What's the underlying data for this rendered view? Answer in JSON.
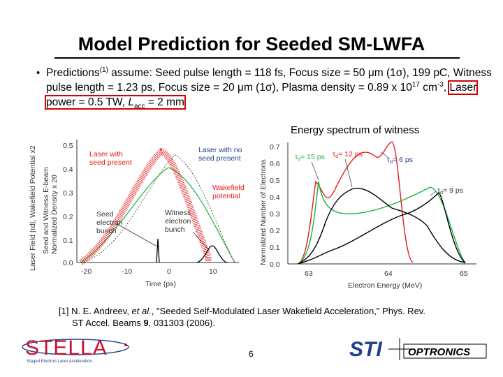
{
  "title": "Model Prediction for Seeded SM-LWFA",
  "bullet": {
    "p1": "Predictions",
    "p1_sup": "(1)",
    "p2": " assume:  Seed pulse length = 118 fs, Focus size = 50 ",
    "mu1": "μ",
    "p3": "m (1",
    "sigma1": "σ",
    "p4": "), 199 pC, Witness pulse length = 1.23 ps, Focus size = 20 ",
    "mu2": "μ",
    "p5": "m (1",
    "sigma2": "σ",
    "p6": "), Plasma density = 0.89 x 10",
    "p6_sup": "17",
    "p7": " cm",
    "p7_sup": "-3",
    "p8": ", ",
    "highlight_a": "Laser power = 0.5 TW, ",
    "highlight_L": "L",
    "highlight_sub": "acc",
    "highlight_b": " = 2 mm"
  },
  "right_caption": "Energy spectrum of witness",
  "left_chart": {
    "ylabel_outer": "Laser Field |",
    "ylabel_outer_tau": "τ",
    "ylabel_outer_rest": "d|, Wakefield Potential x2",
    "ylabel_mid": "Seed and Witness E-beam",
    "ylabel_inner": "Normalized Density x 20",
    "xlabel": "Time (ps)",
    "yticks": [
      "0.5",
      "0.4",
      "0.3",
      "0.2",
      "0.1",
      "0.0"
    ],
    "xticks": [
      "-20",
      "-10",
      "0",
      "10"
    ],
    "ann_laser_seed": [
      "Laser with",
      "seed present"
    ],
    "ann_laser_noseed": [
      "Laser with no",
      "seed present"
    ],
    "ann_wakefield": [
      "Wakefield",
      "potential"
    ],
    "ann_seed": [
      "Seed",
      "electron",
      "bunch"
    ],
    "ann_witness": [
      "Witness",
      "electron",
      "bunch"
    ]
  },
  "right_chart": {
    "ylabel": "Normalized Number of Electrons",
    "xlabel": "Electron Energy (MeV)",
    "yticks": [
      "0.7",
      "0.6",
      "0.5",
      "0.4",
      "0.3",
      "0.2",
      "0.1",
      "0.0"
    ],
    "xticks": [
      "63",
      "64",
      "65"
    ],
    "ann_15": "= 15 ps",
    "ann_12": "= 12 ps",
    "ann_6": "= 6 ps",
    "ann_9": "= 9 ps",
    "tau": "τ",
    "tau_sub": "d"
  },
  "reference": {
    "line1a": "[1]  N. E. Andreev, ",
    "line1_em": "et al.",
    "line1b": ", \"Seeded Self-Modulated Laser Wakefield Acceleration,\" Phys. Rev.",
    "line2a": "ST Accel. Beams ",
    "line2_bold": "9",
    "line2b": ", 031303 (2006)."
  },
  "page_number": "6",
  "logo_left": {
    "name": "STELLA",
    "tagline": "Staged Electron Laser Acceleration"
  },
  "logo_right": {
    "name_a": "STI",
    "name_b": "OPTRONICS"
  },
  "colors": {
    "red": "#e8191b",
    "green": "#16b43c",
    "black": "#000000",
    "highlight": "#d40000",
    "stella_red": "#c8102e",
    "stella_blue": "#1f3f8f",
    "sti_blue": "#1f3f8f"
  }
}
